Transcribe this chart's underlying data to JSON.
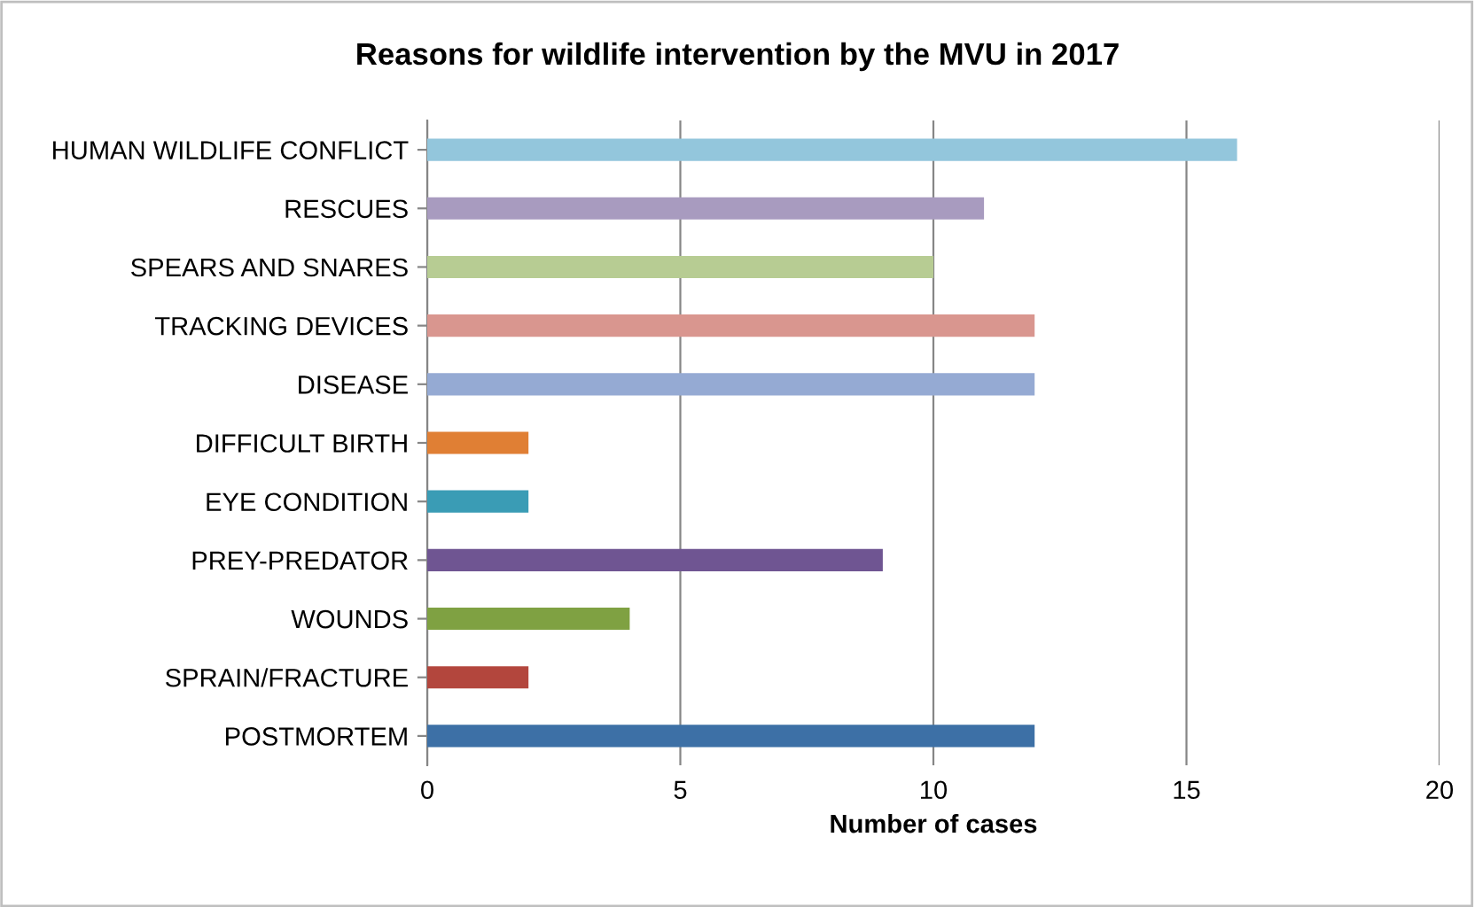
{
  "chart_data": {
    "type": "bar",
    "orientation": "horizontal",
    "title": "Reasons for wildlife intervention by the MVU in 2017",
    "xlabel": "Number of cases",
    "categories": [
      "HUMAN WILDLIFE CONFLICT",
      "RESCUES",
      "SPEARS AND SNARES",
      "TRACKING DEVICES",
      "DISEASE",
      "DIFFICULT BIRTH",
      "EYE CONDITION",
      "PREY-PREDATOR",
      "WOUNDS",
      "SPRAIN/FRACTURE",
      "POSTMORTEM"
    ],
    "values": [
      16,
      11,
      10,
      12,
      12,
      2,
      2,
      9,
      4,
      2,
      12
    ],
    "colors": [
      "#93c6dc",
      "#a89bbf",
      "#b7cc93",
      "#d9968f",
      "#95aad3",
      "#e07f34",
      "#3a9cb5",
      "#6f5592",
      "#7fa142",
      "#b3463d",
      "#3d70a6"
    ],
    "xlim": [
      0,
      20
    ],
    "xticks": [
      0,
      5,
      10,
      15,
      20
    ],
    "grid": "x"
  }
}
